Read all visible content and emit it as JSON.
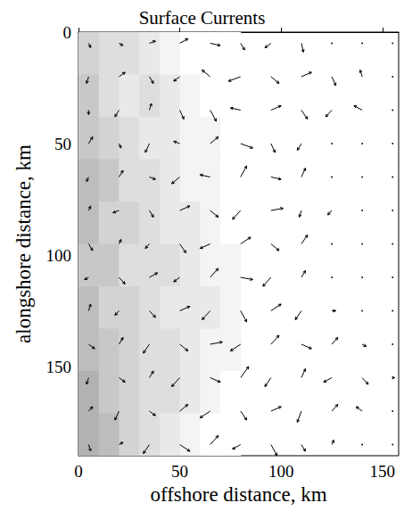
{
  "chart_data": {
    "type": "quiver",
    "title": "Surface Currents",
    "x_label": "offshore distance, km",
    "y_label": "alongshore distance, km",
    "xlim": [
      0,
      158
    ],
    "ylim": [
      190,
      0
    ],
    "xticks": [
      0,
      50,
      100,
      150
    ],
    "yticks": [
      0,
      50,
      100,
      150
    ],
    "color": "#000000",
    "grid": false,
    "x": [
      5,
      20,
      35,
      50,
      65,
      80,
      95,
      110,
      125,
      140,
      155
    ],
    "y": [
      5,
      20,
      35,
      50,
      65,
      80,
      95,
      110,
      125,
      140,
      155,
      170,
      185
    ],
    "u": [
      [
        1,
        2,
        3,
        4,
        5,
        2,
        -3,
        1,
        0,
        0,
        0
      ],
      [
        -1,
        3,
        2,
        -3,
        -4,
        -6,
        4,
        5,
        2,
        -1,
        0
      ],
      [
        0,
        -2,
        1,
        2,
        3,
        -5,
        5,
        3,
        -3,
        -4,
        0
      ],
      [
        2,
        1,
        -2,
        -3,
        4,
        6,
        2,
        -2,
        0,
        0,
        0
      ],
      [
        -1,
        2,
        3,
        -4,
        -5,
        3,
        5,
        2,
        0,
        0,
        0
      ],
      [
        1,
        -3,
        2,
        5,
        4,
        -4,
        6,
        -1,
        -2,
        0,
        0
      ],
      [
        2,
        1,
        -2,
        3,
        -5,
        5,
        4,
        3,
        0,
        0,
        0
      ],
      [
        -2,
        3,
        4,
        -3,
        4,
        6,
        -4,
        2,
        0,
        0,
        0
      ],
      [
        1,
        -2,
        3,
        5,
        -4,
        3,
        5,
        -3,
        2,
        0,
        0
      ],
      [
        3,
        2,
        -3,
        4,
        6,
        -5,
        4,
        5,
        3,
        2,
        0
      ],
      [
        -1,
        3,
        2,
        -4,
        5,
        4,
        -3,
        2,
        -4,
        3,
        1
      ],
      [
        2,
        -2,
        3,
        4,
        -5,
        3,
        5,
        -2,
        3,
        -3,
        0
      ],
      [
        1,
        2,
        -3,
        5,
        4,
        -4,
        3,
        2,
        1,
        0,
        0
      ]
    ],
    "v": [
      [
        2,
        1,
        -1,
        -2,
        1,
        3,
        2,
        4,
        0,
        0,
        0
      ],
      [
        3,
        -2,
        3,
        2,
        -3,
        2,
        3,
        -2,
        4,
        -3,
        0
      ],
      [
        2,
        3,
        -3,
        4,
        5,
        -1,
        -2,
        4,
        3,
        -2,
        0
      ],
      [
        -3,
        2,
        4,
        -1,
        -3,
        2,
        4,
        3,
        0,
        0,
        0
      ],
      [
        2,
        -3,
        1,
        3,
        -1,
        -5,
        1,
        -4,
        0,
        0,
        0
      ],
      [
        -2,
        1,
        3,
        -2,
        3,
        4,
        -1,
        3,
        2,
        0,
        0
      ],
      [
        3,
        -2,
        2,
        4,
        2,
        -3,
        3,
        -4,
        0,
        0,
        0
      ],
      [
        1,
        3,
        -2,
        2,
        -4,
        1,
        4,
        -3,
        0,
        0,
        0
      ],
      [
        -3,
        2,
        3,
        -2,
        4,
        5,
        -3,
        4,
        0,
        0,
        0
      ],
      [
        2,
        -3,
        4,
        3,
        -1,
        3,
        -4,
        2,
        -3,
        1,
        0
      ],
      [
        3,
        2,
        -3,
        4,
        2,
        -5,
        4,
        -4,
        2,
        3,
        0
      ],
      [
        -2,
        4,
        2,
        -3,
        3,
        4,
        -2,
        5,
        -3,
        -2,
        0
      ],
      [
        3,
        -1,
        4,
        3,
        -4,
        2,
        5,
        3,
        -2,
        0,
        0
      ]
    ],
    "shading": {
      "x_edges": [
        0,
        10,
        20,
        30,
        40,
        50,
        60,
        70,
        80
      ],
      "y_edges": [
        0,
        19,
        38,
        57,
        76,
        95,
        114,
        133,
        152,
        171,
        190
      ],
      "values": [
        [
          0.4,
          0.3,
          0.3,
          0.2,
          0.1,
          0,
          0,
          0
        ],
        [
          0.5,
          0.3,
          0.2,
          0.3,
          0.2,
          0.1,
          0,
          0
        ],
        [
          0.5,
          0.4,
          0.3,
          0.2,
          0.2,
          0.1,
          0.1,
          0
        ],
        [
          0.6,
          0.5,
          0.3,
          0.3,
          0.2,
          0.1,
          0.1,
          0
        ],
        [
          0.6,
          0.4,
          0.4,
          0.3,
          0.2,
          0.2,
          0.1,
          0
        ],
        [
          0.5,
          0.5,
          0.3,
          0.3,
          0.3,
          0.2,
          0.1,
          0.1
        ],
        [
          0.6,
          0.4,
          0.4,
          0.3,
          0.2,
          0.2,
          0.2,
          0.1
        ],
        [
          0.6,
          0.5,
          0.4,
          0.3,
          0.3,
          0.2,
          0.1,
          0.1
        ],
        [
          0.7,
          0.5,
          0.4,
          0.3,
          0.3,
          0.2,
          0.1,
          0
        ],
        [
          0.7,
          0.6,
          0.4,
          0.3,
          0.2,
          0.1,
          0,
          0
        ]
      ]
    }
  }
}
